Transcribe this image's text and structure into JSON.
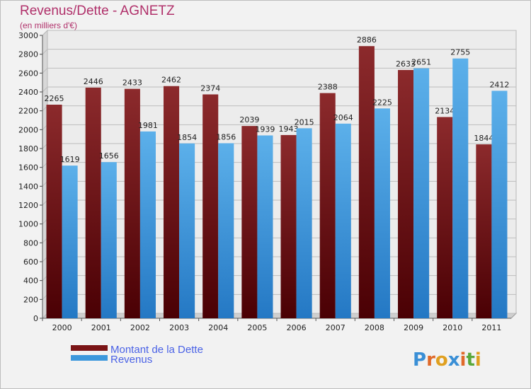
{
  "header": {
    "title": "Revenus/Dette - AGNETZ",
    "subtitle": "(en milliers d'€)"
  },
  "chart_data": {
    "type": "bar",
    "categories": [
      "2000",
      "2001",
      "2002",
      "2003",
      "2004",
      "2005",
      "2006",
      "2007",
      "2008",
      "2009",
      "2010",
      "2011"
    ],
    "series": [
      {
        "name": "Montant de la Dette",
        "color": "#7a1416",
        "values": [
          2265,
          2446,
          2433,
          2462,
          2374,
          2039,
          1943,
          2388,
          2886,
          2633,
          2134,
          1844
        ]
      },
      {
        "name": "Revenus",
        "color": "#3d98dc",
        "values": [
          1619,
          1656,
          1981,
          1854,
          1856,
          1939,
          2015,
          2064,
          2225,
          2651,
          2755,
          2412
        ]
      }
    ],
    "ylim": [
      0,
      3000
    ],
    "yticks": [
      0,
      200,
      400,
      600,
      800,
      1000,
      1200,
      1400,
      1600,
      1800,
      2000,
      2200,
      2400,
      2600,
      2800,
      3000
    ],
    "grid": true,
    "legend_position": "bottom-left"
  },
  "logo": {
    "letters": [
      "P",
      "r",
      "o",
      "x",
      "i",
      "t",
      "i"
    ],
    "colors": [
      "#3a8fd6",
      "#e06a2a",
      "#e0a020",
      "#3a8fd6",
      "#e06a2a",
      "#5aa83a",
      "#e0a020"
    ]
  }
}
